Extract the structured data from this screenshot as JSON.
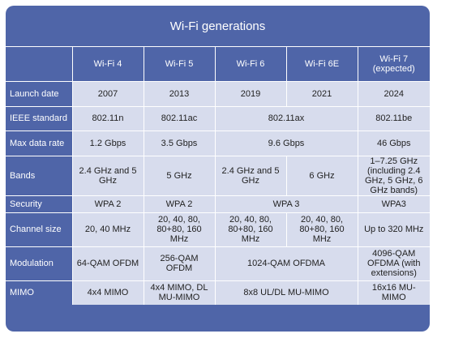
{
  "title": "Wi-Fi generations",
  "columns": [
    "Wi-Fi 4",
    "Wi-Fi 5",
    "Wi-Fi 6",
    "Wi-Fi 6E",
    "Wi-Fi 7 (expected)"
  ],
  "rows": [
    {
      "label": "Launch date",
      "cells": [
        {
          "text": "2007",
          "span": 1
        },
        {
          "text": "2013",
          "span": 1
        },
        {
          "text": "2019",
          "span": 1
        },
        {
          "text": "2021",
          "span": 1
        },
        {
          "text": "2024",
          "span": 1
        }
      ]
    },
    {
      "label": "IEEE standard",
      "cells": [
        {
          "text": "802.11n",
          "span": 1
        },
        {
          "text": "802.11ac",
          "span": 1
        },
        {
          "text": "802.11ax",
          "span": 2
        },
        {
          "text": "802.11be",
          "span": 1
        }
      ]
    },
    {
      "label": "Max data rate",
      "cells": [
        {
          "text": "1.2 Gbps",
          "span": 1
        },
        {
          "text": "3.5 Gbps",
          "span": 1
        },
        {
          "text": "9.6 Gbps",
          "span": 2
        },
        {
          "text": "46 Gbps",
          "span": 1
        }
      ]
    },
    {
      "label": "Bands",
      "cells": [
        {
          "text": "2.4 GHz and 5 GHz",
          "span": 1
        },
        {
          "text": "5 GHz",
          "span": 1
        },
        {
          "text": "2.4 GHz and 5 GHz",
          "span": 1
        },
        {
          "text": "6 GHz",
          "span": 1
        },
        {
          "text": "1–7.25 GHz (including 2.4 GHz, 5 GHz, 6 GHz bands)",
          "span": 1
        }
      ]
    },
    {
      "label": "Security",
      "cells": [
        {
          "text": "WPA 2",
          "span": 1
        },
        {
          "text": "WPA 2",
          "span": 1
        },
        {
          "text": "WPA 3",
          "span": 2
        },
        {
          "text": "WPA3",
          "span": 1
        }
      ]
    },
    {
      "label": "Channel size",
      "cells": [
        {
          "text": "20, 40 MHz",
          "span": 1
        },
        {
          "text": "20, 40, 80, 80+80, 160 MHz",
          "span": 1
        },
        {
          "text": "20, 40, 80, 80+80, 160 MHz",
          "span": 1
        },
        {
          "text": "20, 40, 80, 80+80, 160 MHz",
          "span": 1
        },
        {
          "text": "Up to 320 MHz",
          "span": 1
        }
      ]
    },
    {
      "label": "Modulation",
      "cells": [
        {
          "text": "64-QAM OFDM",
          "span": 1
        },
        {
          "text": "256-QAM OFDM",
          "span": 1
        },
        {
          "text": "1024-QAM OFDMA",
          "span": 2
        },
        {
          "text": "4096-QAM OFDMA (with extensions)",
          "span": 1
        }
      ]
    },
    {
      "label": "MIMO",
      "cells": [
        {
          "text": "4x4 MIMO",
          "span": 1
        },
        {
          "text": "4x4 MIMO, DL MU-MIMO",
          "span": 1
        },
        {
          "text": "8x8 UL/DL MU-MIMO",
          "span": 2
        },
        {
          "text": "16x16 MU-MIMO",
          "span": 1
        }
      ]
    }
  ]
}
